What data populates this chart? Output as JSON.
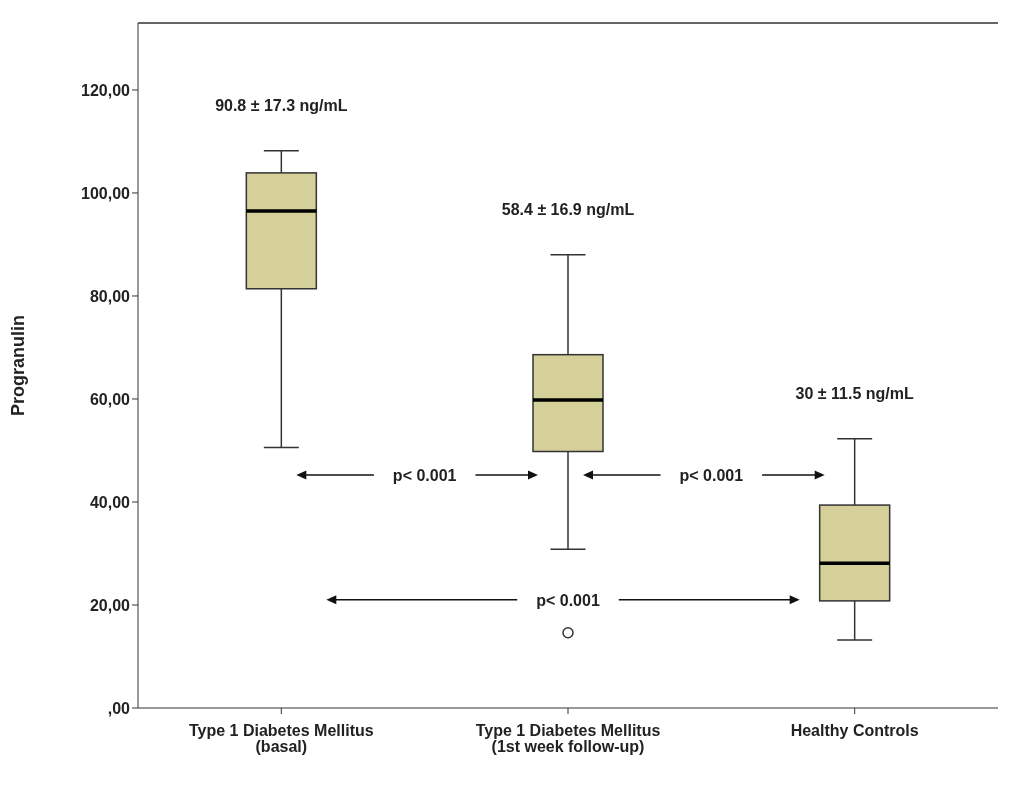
{
  "chart_data": {
    "type": "box",
    "ylabel": "Progranulin",
    "categories": [
      "Type 1 Diabetes Mellitus (basal)",
      "Type 1 Diabetes Mellitus (1st week follow-up)",
      "Healthy Controls"
    ],
    "boxes": [
      {
        "low": 50.6,
        "q1": 81.4,
        "median": 96.5,
        "q3": 103.9,
        "high": 108.2
      },
      {
        "low": 30.8,
        "q1": 49.8,
        "median": 59.8,
        "q3": 68.6,
        "high": 88.0,
        "outliers": [
          14.6
        ]
      },
      {
        "low": 13.2,
        "q1": 20.8,
        "median": 28.1,
        "q3": 39.4,
        "high": 52.3
      }
    ],
    "color": "#d5cf99",
    "ylim": [
      0,
      133
    ],
    "yticks": [
      {
        "value": 0,
        "label": ",00"
      },
      {
        "value": 20,
        "label": "20,00"
      },
      {
        "value": 40,
        "label": "40,00"
      },
      {
        "value": 60,
        "label": "60,00"
      },
      {
        "value": 80,
        "label": "80,00"
      },
      {
        "value": 100,
        "label": "100,00"
      },
      {
        "value": 120,
        "label": "120,00"
      }
    ],
    "annotations": [
      "90.8 ± 17.3 ng/mL",
      "58.4 ± 16.9 ng/mL",
      "30 ± 11.5 ng/mL",
      "p< 0.001",
      "p< 0.001",
      "p< 0.001"
    ]
  }
}
